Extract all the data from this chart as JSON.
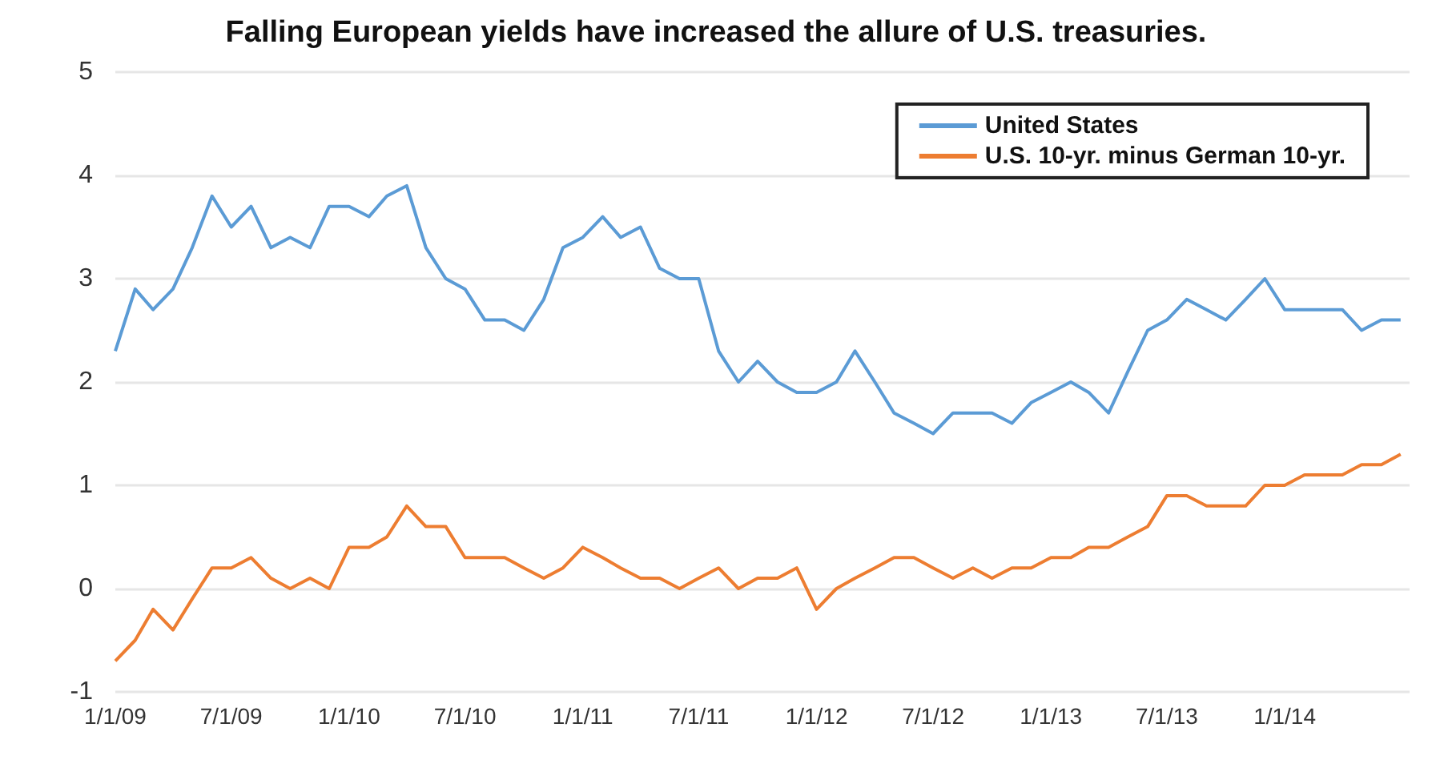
{
  "chart_data": {
    "type": "line",
    "title": "Falling European yields have increased the allure of U.S. treasuries.",
    "x": [
      "2009-01",
      "2009-02",
      "2009-03",
      "2009-04",
      "2009-05",
      "2009-06",
      "2009-07",
      "2009-08",
      "2009-09",
      "2009-10",
      "2009-11",
      "2009-12",
      "2010-01",
      "2010-02",
      "2010-03",
      "2010-04",
      "2010-05",
      "2010-06",
      "2010-07",
      "2010-08",
      "2010-09",
      "2010-10",
      "2010-11",
      "2010-12",
      "2011-01",
      "2011-02",
      "2011-03",
      "2011-04",
      "2011-05",
      "2011-06",
      "2011-07",
      "2011-08",
      "2011-09",
      "2011-10",
      "2011-11",
      "2011-12",
      "2012-01",
      "2012-02",
      "2012-03",
      "2012-04",
      "2012-05",
      "2012-06",
      "2012-07",
      "2012-08",
      "2012-09",
      "2012-10",
      "2012-11",
      "2012-12",
      "2013-01",
      "2013-02",
      "2013-03",
      "2013-04",
      "2013-05",
      "2013-06",
      "2013-07",
      "2013-08",
      "2013-09",
      "2013-10",
      "2013-11",
      "2013-12",
      "2014-01",
      "2014-02",
      "2014-03",
      "2014-04",
      "2014-05",
      "2014-06",
      "2014-07"
    ],
    "series": [
      {
        "name": "United States",
        "color": "#5b9bd5",
        "values": [
          2.3,
          2.9,
          2.7,
          2.9,
          3.3,
          3.8,
          3.5,
          3.7,
          3.3,
          3.4,
          3.3,
          3.7,
          3.7,
          3.6,
          3.8,
          3.9,
          3.3,
          3.0,
          2.9,
          2.6,
          2.6,
          2.5,
          2.8,
          3.3,
          3.4,
          3.6,
          3.4,
          3.5,
          3.1,
          3.0,
          3.0,
          2.3,
          2.0,
          2.2,
          2.0,
          1.9,
          1.9,
          2.0,
          2.3,
          2.0,
          1.7,
          1.6,
          1.5,
          1.7,
          1.7,
          1.7,
          1.6,
          1.8,
          1.9,
          2.0,
          1.9,
          1.7,
          2.1,
          2.5,
          2.6,
          2.8,
          2.7,
          2.6,
          2.8,
          3.0,
          2.7,
          2.7,
          2.7,
          2.7,
          2.5,
          2.6,
          2.6
        ]
      },
      {
        "name": "U.S. 10-yr. minus German 10-yr.",
        "color": "#ed7d31",
        "values": [
          -0.7,
          -0.5,
          -0.2,
          -0.4,
          -0.1,
          0.2,
          0.2,
          0.3,
          0.1,
          0.0,
          0.1,
          0.0,
          0.4,
          0.4,
          0.5,
          0.8,
          0.6,
          0.6,
          0.3,
          0.3,
          0.3,
          0.2,
          0.1,
          0.2,
          0.4,
          0.3,
          0.2,
          0.1,
          0.1,
          0.0,
          0.1,
          0.2,
          0.0,
          0.1,
          0.1,
          0.2,
          -0.2,
          0.0,
          0.1,
          0.2,
          0.3,
          0.3,
          0.2,
          0.1,
          0.2,
          0.1,
          0.2,
          0.2,
          0.3,
          0.3,
          0.4,
          0.4,
          0.5,
          0.6,
          0.9,
          0.9,
          0.8,
          0.8,
          0.8,
          1.0,
          1.0,
          1.1,
          1.1,
          1.1,
          1.2,
          1.2,
          1.3
        ]
      }
    ],
    "xlim": [
      "2009-01-01",
      "2014-07-15"
    ],
    "xticks": [
      {
        "value": "2009-01-01",
        "label": "1/1/09"
      },
      {
        "value": "2009-07-01",
        "label": "7/1/09"
      },
      {
        "value": "2010-01-01",
        "label": "1/1/10"
      },
      {
        "value": "2010-07-01",
        "label": "7/1/10"
      },
      {
        "value": "2011-01-01",
        "label": "1/1/11"
      },
      {
        "value": "2011-07-01",
        "label": "7/1/11"
      },
      {
        "value": "2012-01-01",
        "label": "1/1/12"
      },
      {
        "value": "2012-07-01",
        "label": "7/1/12"
      },
      {
        "value": "2013-01-01",
        "label": "1/1/13"
      },
      {
        "value": "2013-07-01",
        "label": "7/1/13"
      },
      {
        "value": "2014-01-01",
        "label": "1/1/14"
      }
    ],
    "ylim": [
      -1,
      5
    ],
    "yticks": [
      -1,
      0,
      1,
      2,
      3,
      4,
      5
    ],
    "grid": "y",
    "legend": "top right",
    "marker": "none",
    "line_style": "solid"
  }
}
